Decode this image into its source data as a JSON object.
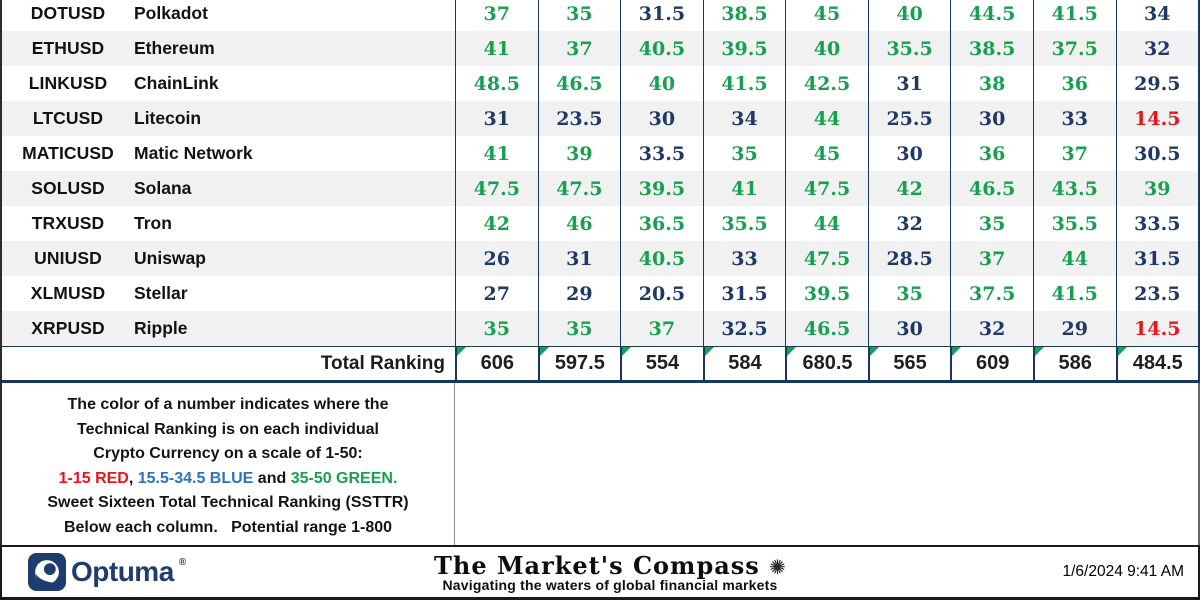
{
  "colors": {
    "green": "#16A04F",
    "blue": "#1F3864",
    "red": "#E9141D",
    "navy_border": "#17375E",
    "note_blue": "#2E74B5",
    "row_alt": "#F1F1F1",
    "brand_navy": "#1E3D6E"
  },
  "table": {
    "rows": [
      {
        "ticker": "DOTUSD",
        "name": "Polkadot",
        "values": [
          {
            "v": "37",
            "c": "g"
          },
          {
            "v": "35",
            "c": "g"
          },
          {
            "v": "31.5",
            "c": "b"
          },
          {
            "v": "38.5",
            "c": "g"
          },
          {
            "v": "45",
            "c": "g"
          },
          {
            "v": "40",
            "c": "g"
          },
          {
            "v": "44.5",
            "c": "g"
          },
          {
            "v": "41.5",
            "c": "g"
          },
          {
            "v": "34",
            "c": "b"
          }
        ]
      },
      {
        "ticker": "ETHUSD",
        "name": "Ethereum",
        "values": [
          {
            "v": "41",
            "c": "g"
          },
          {
            "v": "37",
            "c": "g"
          },
          {
            "v": "40.5",
            "c": "g"
          },
          {
            "v": "39.5",
            "c": "g"
          },
          {
            "v": "40",
            "c": "g"
          },
          {
            "v": "35.5",
            "c": "g"
          },
          {
            "v": "38.5",
            "c": "g"
          },
          {
            "v": "37.5",
            "c": "g"
          },
          {
            "v": "32",
            "c": "b"
          }
        ]
      },
      {
        "ticker": "LINKUSD",
        "name": "ChainLink",
        "values": [
          {
            "v": "48.5",
            "c": "g"
          },
          {
            "v": "46.5",
            "c": "g"
          },
          {
            "v": "40",
            "c": "g"
          },
          {
            "v": "41.5",
            "c": "g"
          },
          {
            "v": "42.5",
            "c": "g"
          },
          {
            "v": "31",
            "c": "b"
          },
          {
            "v": "38",
            "c": "g"
          },
          {
            "v": "36",
            "c": "g"
          },
          {
            "v": "29.5",
            "c": "b"
          }
        ]
      },
      {
        "ticker": "LTCUSD",
        "name": "Litecoin",
        "values": [
          {
            "v": "31",
            "c": "b"
          },
          {
            "v": "23.5",
            "c": "b"
          },
          {
            "v": "30",
            "c": "b"
          },
          {
            "v": "34",
            "c": "b"
          },
          {
            "v": "44",
            "c": "g"
          },
          {
            "v": "25.5",
            "c": "b"
          },
          {
            "v": "30",
            "c": "b"
          },
          {
            "v": "33",
            "c": "b"
          },
          {
            "v": "14.5",
            "c": "r"
          }
        ]
      },
      {
        "ticker": "MATICUSD",
        "name": "Matic Network",
        "values": [
          {
            "v": "41",
            "c": "g"
          },
          {
            "v": "39",
            "c": "g"
          },
          {
            "v": "33.5",
            "c": "b"
          },
          {
            "v": "35",
            "c": "g"
          },
          {
            "v": "45",
            "c": "g"
          },
          {
            "v": "30",
            "c": "b"
          },
          {
            "v": "36",
            "c": "g"
          },
          {
            "v": "37",
            "c": "g"
          },
          {
            "v": "30.5",
            "c": "b"
          }
        ]
      },
      {
        "ticker": "SOLUSD",
        "name": "Solana",
        "values": [
          {
            "v": "47.5",
            "c": "g"
          },
          {
            "v": "47.5",
            "c": "g"
          },
          {
            "v": "39.5",
            "c": "g"
          },
          {
            "v": "41",
            "c": "g"
          },
          {
            "v": "47.5",
            "c": "g"
          },
          {
            "v": "42",
            "c": "g"
          },
          {
            "v": "46.5",
            "c": "g"
          },
          {
            "v": "43.5",
            "c": "g"
          },
          {
            "v": "39",
            "c": "g"
          }
        ]
      },
      {
        "ticker": "TRXUSD",
        "name": "Tron",
        "values": [
          {
            "v": "42",
            "c": "g"
          },
          {
            "v": "46",
            "c": "g"
          },
          {
            "v": "36.5",
            "c": "g"
          },
          {
            "v": "35.5",
            "c": "g"
          },
          {
            "v": "44",
            "c": "g"
          },
          {
            "v": "32",
            "c": "b"
          },
          {
            "v": "35",
            "c": "g"
          },
          {
            "v": "35.5",
            "c": "g"
          },
          {
            "v": "33.5",
            "c": "b"
          }
        ]
      },
      {
        "ticker": "UNIUSD",
        "name": "Uniswap",
        "values": [
          {
            "v": "26",
            "c": "b"
          },
          {
            "v": "31",
            "c": "b"
          },
          {
            "v": "40.5",
            "c": "g"
          },
          {
            "v": "33",
            "c": "b"
          },
          {
            "v": "47.5",
            "c": "g"
          },
          {
            "v": "28.5",
            "c": "b"
          },
          {
            "v": "37",
            "c": "g"
          },
          {
            "v": "44",
            "c": "g"
          },
          {
            "v": "31.5",
            "c": "b"
          }
        ]
      },
      {
        "ticker": "XLMUSD",
        "name": "Stellar",
        "values": [
          {
            "v": "27",
            "c": "b"
          },
          {
            "v": "29",
            "c": "b"
          },
          {
            "v": "20.5",
            "c": "b"
          },
          {
            "v": "31.5",
            "c": "b"
          },
          {
            "v": "39.5",
            "c": "g"
          },
          {
            "v": "35",
            "c": "g"
          },
          {
            "v": "37.5",
            "c": "g"
          },
          {
            "v": "41.5",
            "c": "g"
          },
          {
            "v": "23.5",
            "c": "b"
          }
        ]
      },
      {
        "ticker": "XRPUSD",
        "name": "Ripple",
        "values": [
          {
            "v": "35",
            "c": "g"
          },
          {
            "v": "35",
            "c": "g"
          },
          {
            "v": "37",
            "c": "g"
          },
          {
            "v": "32.5",
            "c": "b"
          },
          {
            "v": "46.5",
            "c": "g"
          },
          {
            "v": "30",
            "c": "b"
          },
          {
            "v": "32",
            "c": "b"
          },
          {
            "v": "29",
            "c": "b"
          },
          {
            "v": "14.5",
            "c": "r"
          }
        ]
      }
    ],
    "total": {
      "label": "Total Ranking",
      "values": [
        "606",
        "597.5",
        "554",
        "584",
        "680.5",
        "565",
        "609",
        "586",
        "484.5"
      ]
    }
  },
  "note": {
    "lines_top": [
      "The color of a number indicates where the",
      "Technical Ranking is on each individual",
      "Crypto Currency on a scale of 1-50:"
    ],
    "color_line": [
      {
        "t": "1-15 RED",
        "c": "red"
      },
      {
        "t": ", ",
        "c": "black"
      },
      {
        "t": "15.5-34.5 BLUE",
        "c": "blue"
      },
      {
        "t": " and ",
        "c": "black"
      },
      {
        "t": "35-50 GREEN.",
        "c": "green"
      }
    ],
    "lines_bottom": [
      "Sweet Sixteen Total Technical Ranking (SSTTR)",
      "Below each column.   Potential range 1-800"
    ]
  },
  "footer": {
    "brand": "Optuma",
    "reg_mark": "®",
    "title": "The Market's Compass",
    "compass_icon": "✺",
    "subtitle": "Navigating the waters of global financial markets",
    "timestamp": "1/6/2024 9:41 AM"
  }
}
